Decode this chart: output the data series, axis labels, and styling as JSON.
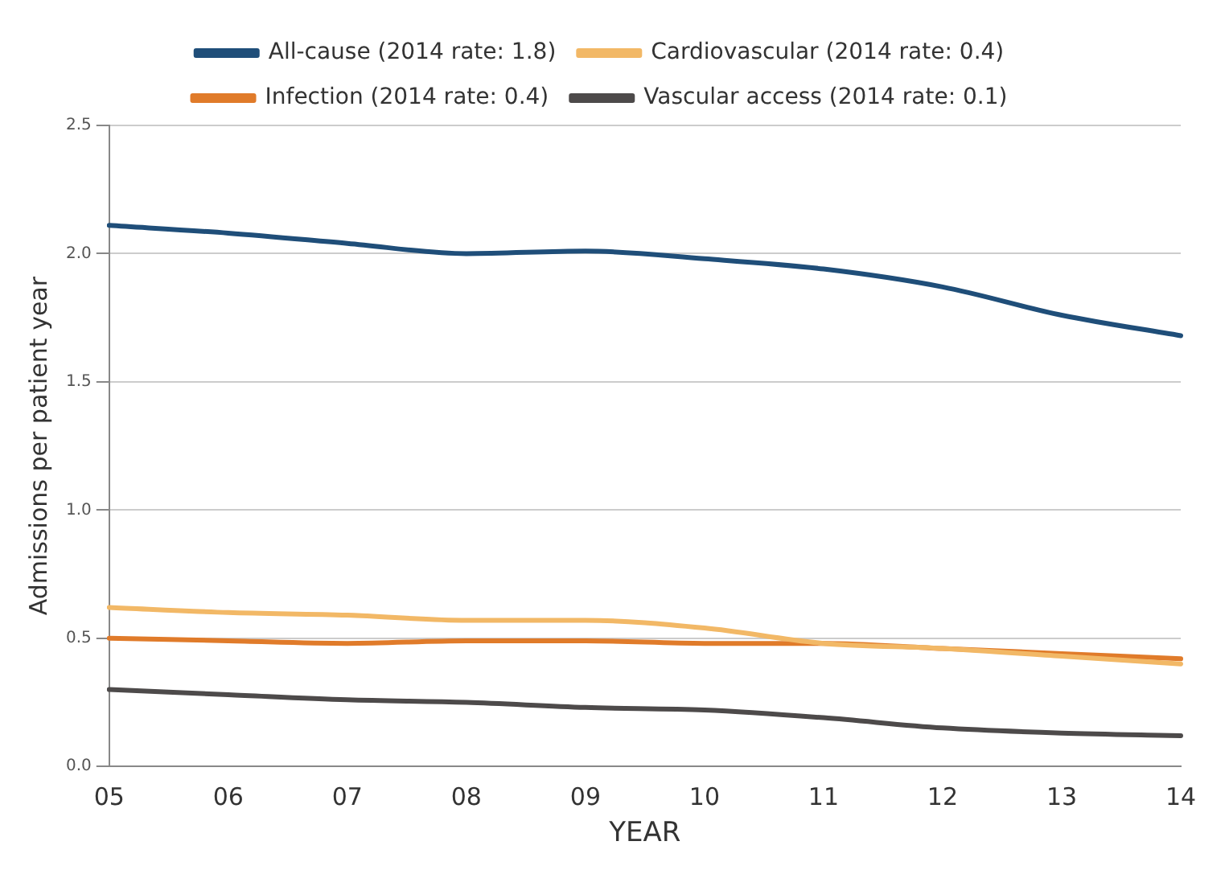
{
  "chart_data": {
    "type": "line",
    "xlabel": "YEAR",
    "ylabel": "Admissions per patient year",
    "categories": [
      "05",
      "06",
      "07",
      "08",
      "09",
      "10",
      "11",
      "12",
      "13",
      "14"
    ],
    "series": [
      {
        "name": "All-cause (2014 rate: 1.8)",
        "color": "#1f4e79",
        "values": [
          2.11,
          2.08,
          2.04,
          2.0,
          2.01,
          1.98,
          1.94,
          1.87,
          1.76,
          1.68
        ]
      },
      {
        "name": "Cardiovascular (2014 rate: 0.4)",
        "color": "#f2b866",
        "values": [
          0.62,
          0.6,
          0.59,
          0.57,
          0.57,
          0.54,
          0.48,
          0.46,
          0.43,
          0.4
        ]
      },
      {
        "name": "Infection (2014 rate: 0.4)",
        "color": "#e07b2a",
        "values": [
          0.5,
          0.49,
          0.48,
          0.49,
          0.49,
          0.48,
          0.48,
          0.46,
          0.44,
          0.42
        ]
      },
      {
        "name": "Vascular access (2014 rate: 0.1)",
        "color": "#4d4a4a",
        "values": [
          0.3,
          0.28,
          0.26,
          0.25,
          0.23,
          0.22,
          0.19,
          0.15,
          0.13,
          0.12
        ]
      }
    ],
    "ylim": [
      0,
      2.5
    ],
    "yticks": [
      {
        "value": 0,
        "label": "0.0"
      },
      {
        "value": 0.5,
        "label": "0.5"
      },
      {
        "value": 1,
        "label": "1.0"
      },
      {
        "value": 1.5,
        "label": "1.5"
      },
      {
        "value": 2,
        "label": "2.0"
      },
      {
        "value": 2.5,
        "label": "2.5"
      }
    ],
    "grid": "y",
    "legend": "top",
    "marker": "none",
    "line_style": "solid"
  }
}
